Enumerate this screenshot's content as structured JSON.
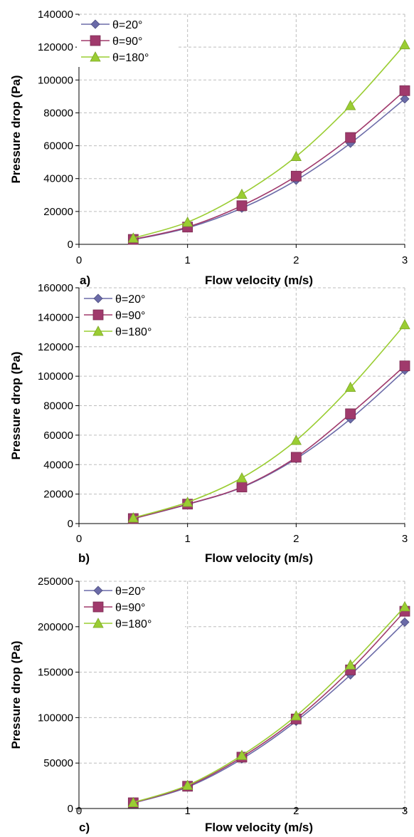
{
  "chart_data": [
    {
      "type": "line",
      "panel_label": "a)",
      "xlabel": "Flow velocity (m/s)",
      "ylabel": "Pressure drop (Pa)",
      "xlim": [
        0,
        3
      ],
      "ylim": [
        0,
        140000
      ],
      "x_ticks": [
        "0",
        "1",
        "2",
        "3"
      ],
      "y_ticks": [
        "0",
        "20000",
        "40000",
        "60000",
        "80000",
        "100000",
        "120000",
        "140000"
      ],
      "grid": true,
      "legend_position": "top-left",
      "x": [
        0.5,
        1.0,
        1.5,
        2.0,
        2.5,
        3.0
      ],
      "series": [
        {
          "name": "θ=20°",
          "values": [
            2800,
            10000,
            22000,
            39000,
            61500,
            88500
          ],
          "color": "#6b6ba8",
          "marker": "diamond"
        },
        {
          "name": "θ=90°",
          "values": [
            3000,
            10500,
            23500,
            41500,
            65000,
            93500
          ],
          "color": "#a03a6c",
          "marker": "square"
        },
        {
          "name": "θ=180°",
          "values": [
            3800,
            13500,
            30500,
            53500,
            84500,
            121500
          ],
          "color": "#9acd32",
          "marker": "triangle"
        }
      ]
    },
    {
      "type": "line",
      "panel_label": "b)",
      "xlabel": "Flow velocity (m/s)",
      "ylabel": "Pressure drop (Pa)",
      "xlim": [
        0,
        3
      ],
      "ylim": [
        0,
        160000
      ],
      "x_ticks": [
        "0",
        "1",
        "2",
        "3"
      ],
      "y_ticks": [
        "0",
        "20000",
        "40000",
        "60000",
        "80000",
        "100000",
        "120000",
        "140000",
        "160000"
      ],
      "grid": true,
      "legend_position": "top-left",
      "x": [
        0.5,
        1.0,
        1.5,
        2.0,
        2.5,
        3.0
      ],
      "series": [
        {
          "name": "θ=20°",
          "values": [
            3300,
            13000,
            24500,
            44000,
            71000,
            104000
          ],
          "color": "#6b6ba8",
          "marker": "diamond"
        },
        {
          "name": "θ=90°",
          "values": [
            3400,
            13200,
            24800,
            45000,
            74500,
            107000
          ],
          "color": "#a03a6c",
          "marker": "square"
        },
        {
          "name": "θ=180°",
          "values": [
            3900,
            14500,
            31000,
            56500,
            92500,
            135000
          ],
          "color": "#9acd32",
          "marker": "triangle"
        }
      ]
    },
    {
      "type": "line",
      "panel_label": "c)",
      "xlabel": "Flow velocity (m/s)",
      "ylabel": "Pressure drop (Pa)",
      "xlim": [
        0,
        3
      ],
      "ylim": [
        0,
        250000
      ],
      "x_ticks": [
        "0",
        "1",
        "2",
        "3"
      ],
      "y_ticks": [
        "0",
        "50000",
        "100000",
        "150000",
        "200000",
        "250000"
      ],
      "grid": true,
      "legend_position": "top-left",
      "x": [
        0.5,
        1.0,
        1.5,
        2.0,
        2.5,
        3.0
      ],
      "series": [
        {
          "name": "θ=20°",
          "values": [
            6000,
            23500,
            54500,
            96000,
            147000,
            205000
          ],
          "color": "#6b6ba8",
          "marker": "diamond"
        },
        {
          "name": "θ=90°",
          "values": [
            6300,
            24500,
            56500,
            98500,
            152500,
            217000
          ],
          "color": "#a03a6c",
          "marker": "square"
        },
        {
          "name": "θ=180°",
          "values": [
            6600,
            25500,
            58500,
            102000,
            158000,
            222000
          ],
          "color": "#9acd32",
          "marker": "triangle"
        }
      ]
    }
  ]
}
